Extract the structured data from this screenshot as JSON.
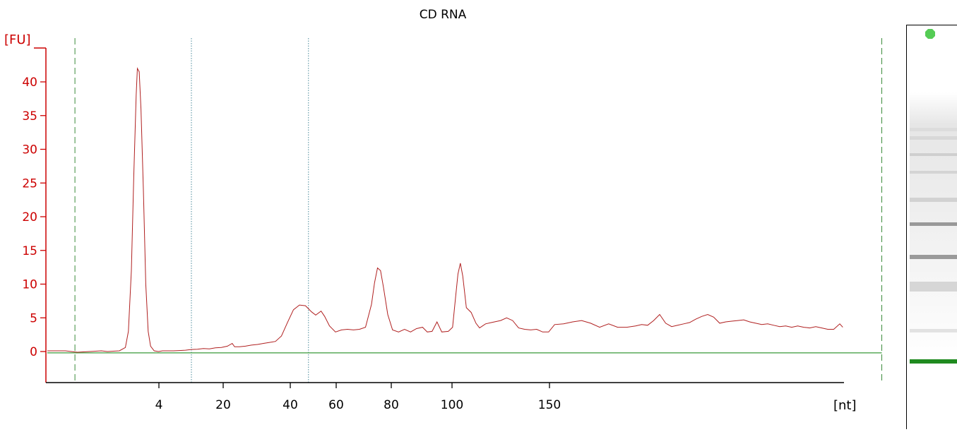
{
  "chart_data": {
    "type": "line",
    "title": "CD RNA",
    "ylabel": "[FU]",
    "xlabel": "[nt]",
    "ylim": [
      -4.5,
      46
    ],
    "yticks": [
      0,
      5,
      10,
      15,
      20,
      25,
      30,
      35,
      40
    ],
    "x_tick_labels": [
      "4",
      "20",
      "40",
      "60",
      "80",
      "100",
      "150"
    ],
    "colors": {
      "trace": "#b02020",
      "axis_y": "#cc0000",
      "axis_x": "#000000",
      "baseline": "#3a9a3a",
      "ladder_marker": "#3a8a3a",
      "region_marker": "#4a8a9a"
    },
    "series": [
      {
        "values_note": "",
        "points": [
          [
            0,
            0.1
          ],
          [
            3,
            0.1
          ],
          [
            4,
            0
          ],
          [
            5,
            -0.1
          ],
          [
            7,
            0
          ],
          [
            9,
            0.1
          ],
          [
            10,
            0
          ],
          [
            12,
            0.1
          ],
          [
            13,
            0.6
          ],
          [
            13.5,
            3
          ],
          [
            14,
            12
          ],
          [
            14.4,
            26
          ],
          [
            14.8,
            38
          ],
          [
            15,
            42
          ],
          [
            15.3,
            41.5
          ],
          [
            15.6,
            36
          ],
          [
            16,
            24
          ],
          [
            16.4,
            10
          ],
          [
            16.8,
            3
          ],
          [
            17.2,
            0.8
          ],
          [
            17.8,
            0.1
          ],
          [
            18.5,
            0
          ],
          [
            19.2,
            0.1
          ],
          [
            20,
            0.1
          ],
          [
            21,
            0.1
          ],
          [
            22,
            0.15
          ],
          [
            23,
            0.2
          ],
          [
            24,
            0.3
          ],
          [
            25,
            0.35
          ],
          [
            26,
            0.45
          ],
          [
            27,
            0.4
          ],
          [
            28,
            0.55
          ],
          [
            29,
            0.6
          ],
          [
            30,
            0.8
          ],
          [
            30.8,
            1.2
          ],
          [
            31.2,
            0.7
          ],
          [
            32,
            0.7
          ],
          [
            33,
            0.8
          ],
          [
            34,
            0.95
          ],
          [
            35,
            1.05
          ],
          [
            36,
            1.2
          ],
          [
            37,
            1.35
          ],
          [
            38,
            1.5
          ],
          [
            39,
            2.3
          ],
          [
            40,
            4.3
          ],
          [
            41,
            6.2
          ],
          [
            42,
            6.9
          ],
          [
            43,
            6.8
          ],
          [
            44,
            5.9
          ],
          [
            44.7,
            5.4
          ],
          [
            45.6,
            6
          ],
          [
            46.2,
            5.2
          ],
          [
            47,
            3.8
          ],
          [
            48,
            2.9
          ],
          [
            49,
            3.2
          ],
          [
            50,
            3.3
          ],
          [
            51,
            3.2
          ],
          [
            52,
            3.3
          ],
          [
            53,
            3.6
          ],
          [
            54,
            7
          ],
          [
            54.5,
            10.2
          ],
          [
            55,
            12.4
          ],
          [
            55.5,
            12
          ],
          [
            56,
            9.5
          ],
          [
            56.7,
            5.5
          ],
          [
            57.5,
            3.2
          ],
          [
            58.5,
            2.9
          ],
          [
            59.5,
            3.3
          ],
          [
            60.5,
            2.9
          ],
          [
            61.5,
            3.4
          ],
          [
            62.5,
            3.6
          ],
          [
            63.3,
            2.9
          ],
          [
            64.1,
            3
          ],
          [
            64.9,
            4.4
          ],
          [
            65.7,
            2.9
          ],
          [
            66.8,
            3
          ],
          [
            67.5,
            3.6
          ],
          [
            68,
            8
          ],
          [
            68.4,
            11.5
          ],
          [
            68.8,
            13.1
          ],
          [
            69.2,
            11.2
          ],
          [
            69.8,
            6.5
          ],
          [
            70.6,
            5.8
          ],
          [
            71.4,
            4.2
          ],
          [
            72,
            3.5
          ],
          [
            73,
            4.1
          ],
          [
            74,
            4.3
          ],
          [
            75.5,
            4.6
          ],
          [
            76.5,
            5
          ],
          [
            77.5,
            4.6
          ],
          [
            78.5,
            3.5
          ],
          [
            79.5,
            3.3
          ],
          [
            80.5,
            3.2
          ],
          [
            81.5,
            3.3
          ],
          [
            82.5,
            2.9
          ],
          [
            83.5,
            2.9
          ],
          [
            84.5,
            4
          ],
          [
            86,
            4.1
          ],
          [
            87.5,
            4.4
          ],
          [
            89,
            4.6
          ],
          [
            90.5,
            4.2
          ],
          [
            92,
            3.6
          ],
          [
            93.5,
            4.1
          ],
          [
            95,
            3.6
          ],
          [
            96.5,
            3.6
          ],
          [
            98,
            3.8
          ],
          [
            99,
            4
          ],
          [
            100,
            3.9
          ],
          [
            101,
            4.6
          ],
          [
            102,
            5.5
          ],
          [
            103,
            4.2
          ],
          [
            104,
            3.7
          ],
          [
            105,
            3.9
          ],
          [
            106,
            4.1
          ],
          [
            107,
            4.3
          ],
          [
            108,
            4.8
          ],
          [
            109,
            5.2
          ],
          [
            110,
            5.5
          ],
          [
            111,
            5.1
          ],
          [
            112,
            4.2
          ],
          [
            113,
            4.4
          ],
          [
            114,
            4.5
          ],
          [
            115,
            4.6
          ],
          [
            116,
            4.7
          ],
          [
            117,
            4.4
          ],
          [
            118,
            4.2
          ],
          [
            119,
            4
          ],
          [
            120,
            4.1
          ],
          [
            121,
            3.9
          ],
          [
            122,
            3.7
          ],
          [
            123,
            3.8
          ],
          [
            124,
            3.6
          ],
          [
            125,
            3.8
          ],
          [
            126,
            3.6
          ],
          [
            127,
            3.5
          ],
          [
            128,
            3.7
          ],
          [
            129,
            3.5
          ],
          [
            130,
            3.3
          ],
          [
            131,
            3.3
          ],
          [
            132,
            4.1
          ],
          [
            132.5,
            3.6
          ]
        ]
      }
    ],
    "baseline_value": -0.2,
    "markers": [
      {
        "type": "dashed",
        "color": "ladder_marker",
        "x": 4.6
      },
      {
        "type": "dotted",
        "color": "region_marker",
        "x": 24
      },
      {
        "type": "dotted",
        "color": "region_marker",
        "x": 43.5
      },
      {
        "type": "dashed",
        "color": "ladder_marker",
        "x": 139
      }
    ]
  }
}
